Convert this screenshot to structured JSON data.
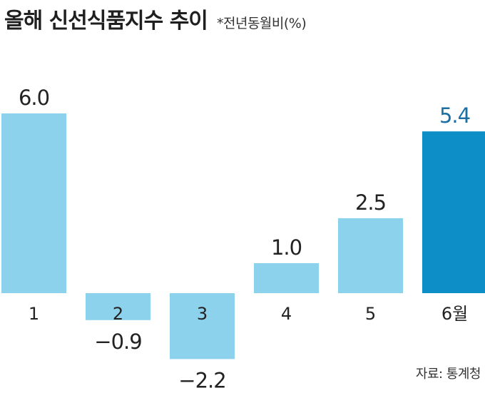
{
  "chart_data": {
    "type": "bar",
    "title": "올해 신선식품지수 추이",
    "subtitle": "*전년동월비(%)",
    "categories": [
      "1",
      "2",
      "3",
      "4",
      "5",
      "6월"
    ],
    "values": [
      6.0,
      -0.9,
      -2.2,
      1.0,
      2.5,
      5.4
    ],
    "value_labels": [
      "6.0",
      "−0.9",
      "−2.2",
      "1.0",
      "2.5",
      "5.4"
    ],
    "highlight_index": 5,
    "ylim": [
      -2.2,
      6.0
    ],
    "grid": false,
    "colors": {
      "bar": "#8dd2ec",
      "highlight_bar": "#0e8ec6",
      "highlight_text": "#1a6fa3",
      "text": "#222222"
    }
  },
  "source": "자료: 통계청"
}
